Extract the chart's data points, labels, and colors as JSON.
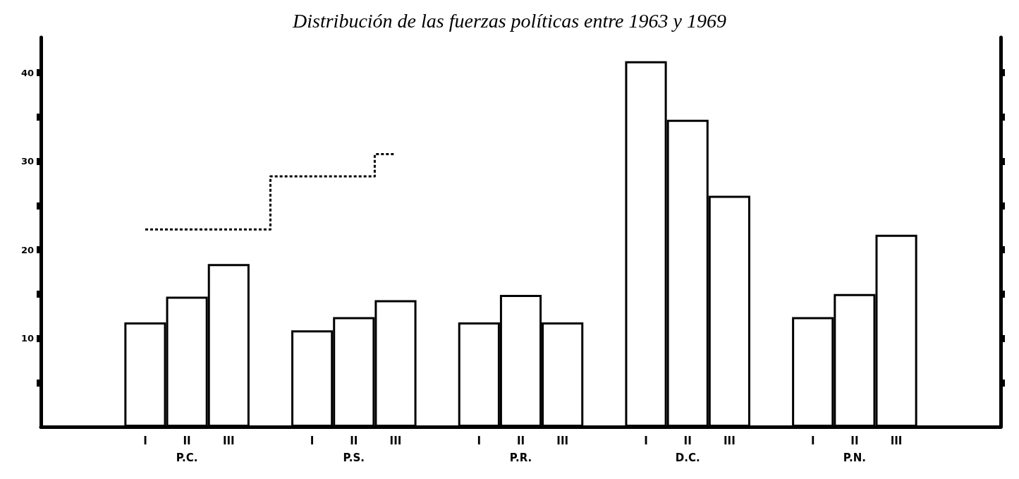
{
  "chart_data": {
    "type": "bar",
    "title": "Distribución de las fuerzas políticas entre 1963 y 1969",
    "categories": [
      null,
      null,
      "I",
      "II",
      "III",
      null,
      "I",
      "II",
      "III",
      null,
      "I",
      "II",
      "III",
      null,
      "I",
      "II",
      "III",
      null,
      "I",
      "II",
      "III",
      null,
      null
    ],
    "series": [
      {
        "color": "#ffffff",
        "values": [
          null,
          null,
          11.8,
          14.7,
          18.4,
          null,
          10.9,
          12.4,
          14.3,
          null,
          11.8,
          14.9,
          11.8,
          null,
          41.3,
          34.7,
          26.1,
          null,
          12.4,
          15.0,
          21.7,
          null,
          null
        ]
      },
      {
        "type": "step",
        "color": "#000000",
        "line_style": "dashed",
        "values": [
          null,
          null,
          22.3,
          22.3,
          22.3,
          null,
          28.3,
          28.3,
          30.8,
          null,
          null,
          null,
          null,
          null,
          null,
          null,
          null,
          null,
          null,
          null,
          null,
          null,
          null
        ]
      }
    ],
    "annotations": [
      "P.C.",
      "P.S.",
      "P.R.",
      "D.C.",
      "P.N."
    ],
    "ylim": [
      0,
      44
    ],
    "yticks": [
      {
        "value": 5,
        "label": null
      },
      10,
      {
        "value": 15,
        "label": null
      },
      20,
      {
        "value": 25,
        "label": null
      },
      30,
      {
        "value": 35,
        "label": null
      },
      40
    ],
    "tick_labels": "xy"
  }
}
